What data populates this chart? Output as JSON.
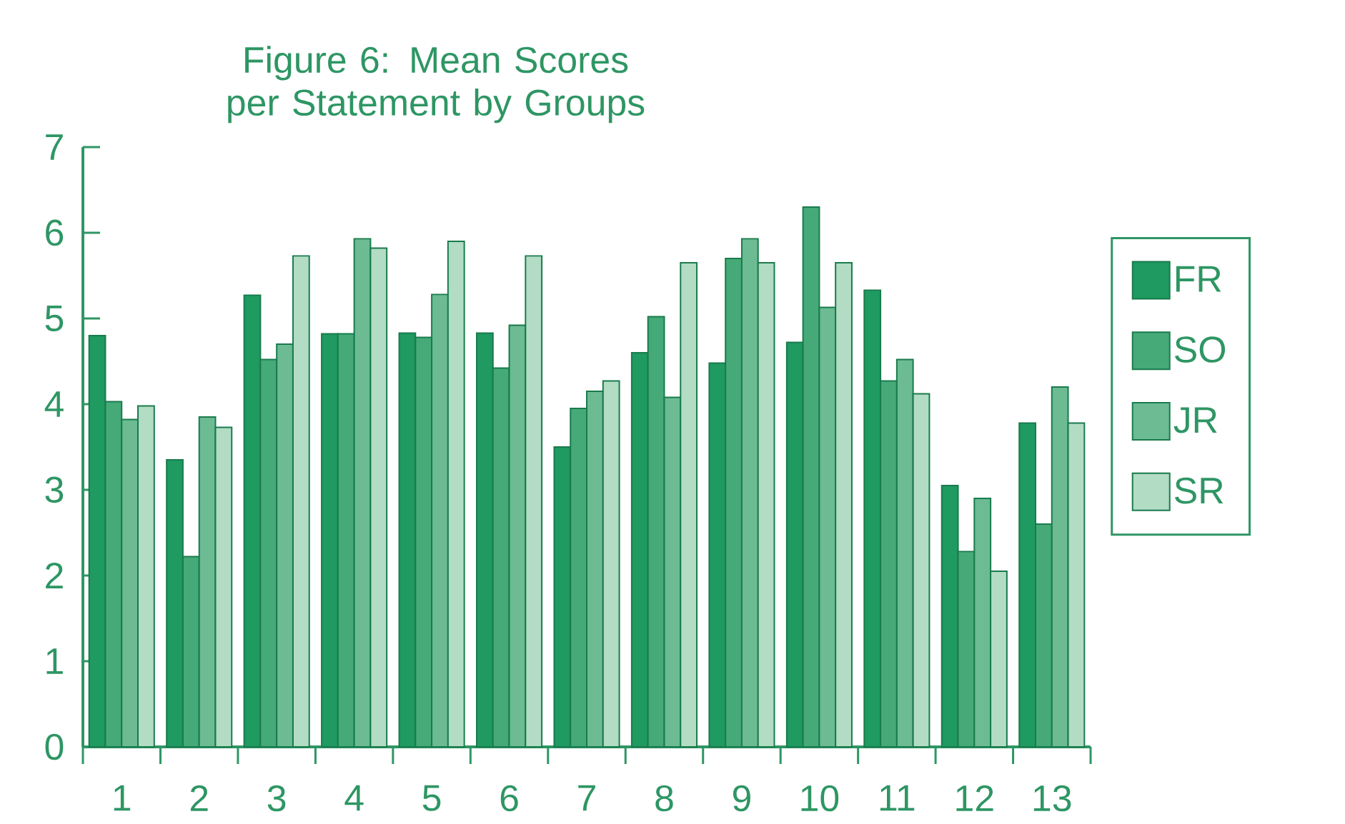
{
  "chart_data": {
    "type": "bar",
    "title": "Figure 6: Mean Scores per Statement by Groups",
    "categories": [
      "1",
      "2",
      "3",
      "4",
      "5",
      "6",
      "7",
      "8",
      "9",
      "10",
      "11",
      "12",
      "13"
    ],
    "series": [
      {
        "name": "FR",
        "color": "#1f9a60",
        "values": [
          4.8,
          3.35,
          5.27,
          4.82,
          4.83,
          4.83,
          3.5,
          4.6,
          4.48,
          4.72,
          5.33,
          3.05,
          3.78
        ]
      },
      {
        "name": "SO",
        "color": "#45aa78",
        "values": [
          4.03,
          2.22,
          4.52,
          4.82,
          4.78,
          4.42,
          3.95,
          5.02,
          5.7,
          6.3,
          4.27,
          2.28,
          2.6
        ]
      },
      {
        "name": "JR",
        "color": "#6cbb93",
        "values": [
          3.82,
          3.85,
          4.7,
          5.93,
          5.28,
          4.92,
          4.15,
          4.08,
          5.93,
          5.13,
          4.52,
          2.9,
          4.2
        ]
      },
      {
        "name": "SR",
        "color": "#b2dcc4",
        "values": [
          3.98,
          3.73,
          5.73,
          5.82,
          5.9,
          5.73,
          4.27,
          5.65,
          5.65,
          5.65,
          4.12,
          2.05,
          3.78
        ]
      }
    ],
    "ylim": [
      0,
      7
    ],
    "yticks": [
      0,
      1,
      2,
      3,
      4,
      5,
      6,
      7
    ],
    "grid": false,
    "legend": "right"
  }
}
